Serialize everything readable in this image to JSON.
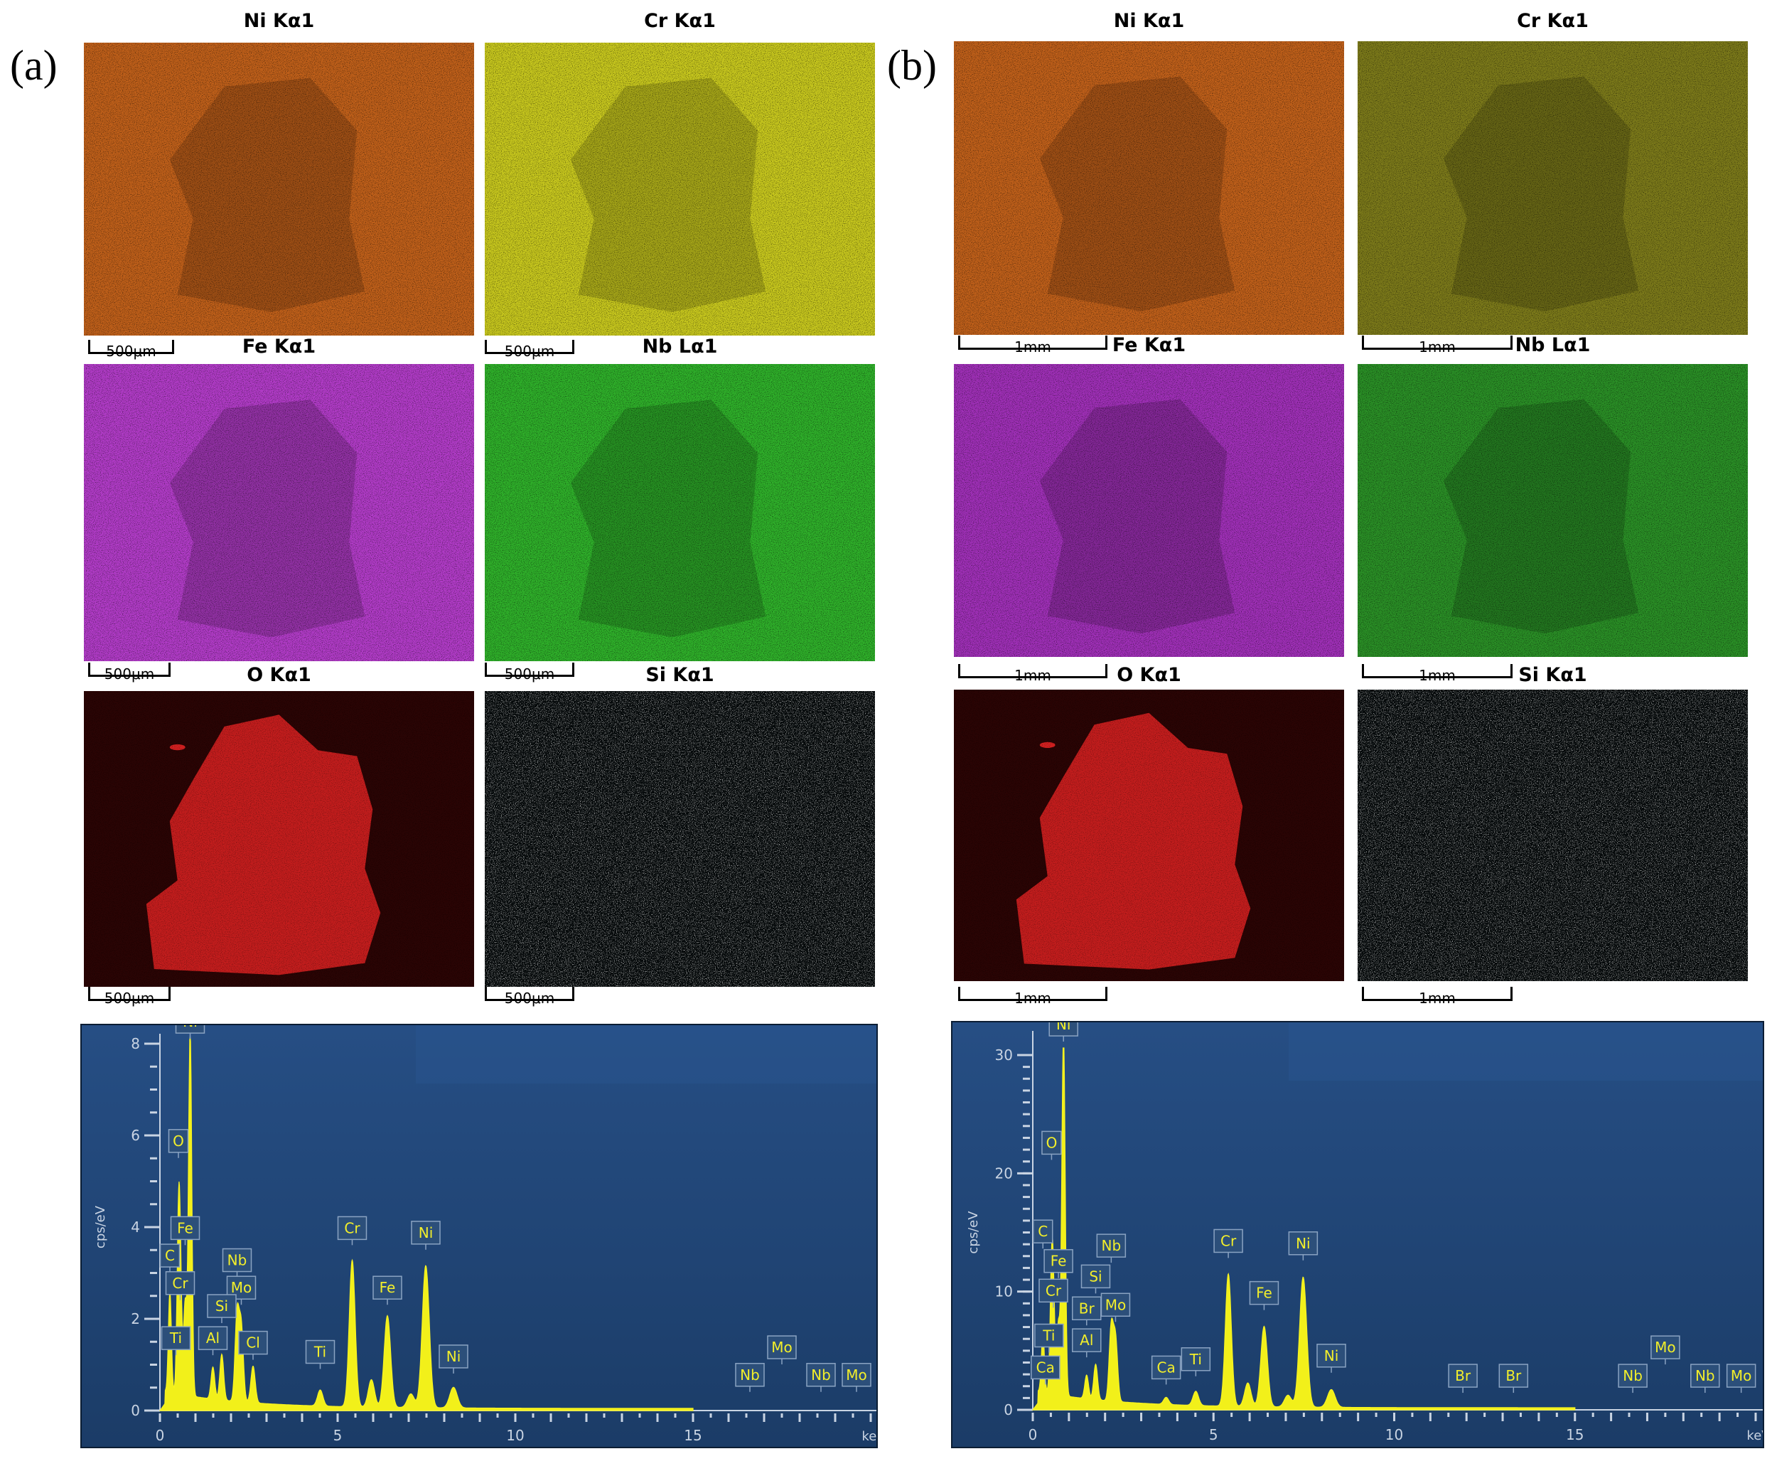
{
  "panel_a": {
    "label": "(a)",
    "maps": [
      {
        "title": "Ni Kα1",
        "scale": "500μm",
        "color": "#c0601a"
      },
      {
        "title": "Cr Kα1",
        "scale": "500μm",
        "color": "#c8c81e"
      },
      {
        "title": "Fe Kα1",
        "scale": "500μm",
        "color": "#b23cc8"
      },
      {
        "title": "Nb Lα1",
        "scale": "500μm",
        "color": "#2fb02a"
      },
      {
        "title": "O Kα1",
        "scale": "500μm",
        "color": "#d42020"
      },
      {
        "title": "Si Kα1",
        "scale": "500μm",
        "color": "#2ec8d0"
      }
    ]
  },
  "panel_b": {
    "label": "(b)",
    "maps": [
      {
        "title": "Ni Kα1",
        "scale": "1mm",
        "color": "#c0601a"
      },
      {
        "title": "Cr Kα1",
        "scale": "1mm",
        "color": "#7c7a1a"
      },
      {
        "title": "Fe Kα1",
        "scale": "1mm",
        "color": "#a030b8"
      },
      {
        "title": "Nb Lα1",
        "scale": "1mm",
        "color": "#2a8f26"
      },
      {
        "title": "O Kα1",
        "scale": "1mm",
        "color": "#d42020"
      },
      {
        "title": "Si Kα1",
        "scale": "1mm",
        "color": "#2ec8d0"
      }
    ]
  },
  "chart_data": [
    {
      "type": "line",
      "panel": "(a)",
      "ylabel": "cps/eV",
      "xlabel": "keV",
      "xlim": [
        0,
        20
      ],
      "ylim": [
        0,
        8
      ],
      "xticks": [
        0,
        5,
        10,
        15
      ],
      "yticks": [
        0,
        2,
        4,
        6,
        8
      ],
      "peaks": [
        {
          "x": 0.28,
          "y": 2.2
        },
        {
          "x": 0.52,
          "y": 3.1
        },
        {
          "x": 0.57,
          "y": 2.3
        },
        {
          "x": 0.71,
          "y": 2.0
        },
        {
          "x": 0.85,
          "y": 8.0
        },
        {
          "x": 1.49,
          "y": 0.7
        },
        {
          "x": 1.74,
          "y": 1.0
        },
        {
          "x": 2.17,
          "y": 1.9
        },
        {
          "x": 2.29,
          "y": 1.6
        },
        {
          "x": 2.62,
          "y": 0.8
        },
        {
          "x": 4.51,
          "y": 0.35
        },
        {
          "x": 5.41,
          "y": 3.2
        },
        {
          "x": 5.95,
          "y": 0.6
        },
        {
          "x": 6.4,
          "y": 2.0
        },
        {
          "x": 7.06,
          "y": 0.3
        },
        {
          "x": 7.48,
          "y": 3.1
        },
        {
          "x": 8.26,
          "y": 0.45
        }
      ],
      "annotations": [
        {
          "label": "Ni",
          "x": 0.85,
          "y": 8.2
        },
        {
          "label": "O",
          "x": 0.52,
          "y": 5.6
        },
        {
          "label": "Fe",
          "x": 0.71,
          "y": 3.7
        },
        {
          "label": "C",
          "x": 0.28,
          "y": 3.1
        },
        {
          "label": "Cr",
          "x": 0.57,
          "y": 2.5
        },
        {
          "label": "Ti",
          "x": 0.45,
          "y": 1.3
        },
        {
          "label": "Nb",
          "x": 2.17,
          "y": 3.0
        },
        {
          "label": "Mo",
          "x": 2.29,
          "y": 2.4
        },
        {
          "label": "Si",
          "x": 1.74,
          "y": 2.0
        },
        {
          "label": "Al",
          "x": 1.49,
          "y": 1.3
        },
        {
          "label": "Cl",
          "x": 2.62,
          "y": 1.2
        },
        {
          "label": "Ti",
          "x": 4.51,
          "y": 1.0
        },
        {
          "label": "Cr",
          "x": 5.41,
          "y": 3.7
        },
        {
          "label": "Fe",
          "x": 6.4,
          "y": 2.4
        },
        {
          "label": "Ni",
          "x": 7.48,
          "y": 3.6
        },
        {
          "label": "Ni",
          "x": 8.26,
          "y": 0.9
        },
        {
          "label": "Nb",
          "x": 16.6,
          "y": 0.5
        },
        {
          "label": "Mo",
          "x": 17.5,
          "y": 1.1
        },
        {
          "label": "Nb",
          "x": 18.6,
          "y": 0.5
        },
        {
          "label": "Mo",
          "x": 19.6,
          "y": 0.5
        }
      ]
    },
    {
      "type": "line",
      "panel": "(b)",
      "ylabel": "cps/eV",
      "xlabel": "keV",
      "xlim": [
        0,
        20
      ],
      "ylim": [
        0,
        30
      ],
      "xticks": [
        0,
        5,
        10,
        15
      ],
      "yticks": [
        0,
        10,
        20,
        30
      ],
      "peaks": [
        {
          "x": 0.28,
          "y": 5.0
        },
        {
          "x": 0.52,
          "y": 9.0
        },
        {
          "x": 0.57,
          "y": 6.5
        },
        {
          "x": 0.71,
          "y": 6.0
        },
        {
          "x": 0.85,
          "y": 31.0
        },
        {
          "x": 1.49,
          "y": 2.0
        },
        {
          "x": 1.74,
          "y": 3.0
        },
        {
          "x": 2.17,
          "y": 6.2
        },
        {
          "x": 2.29,
          "y": 5.2
        },
        {
          "x": 3.69,
          "y": 0.6
        },
        {
          "x": 4.51,
          "y": 1.2
        },
        {
          "x": 5.41,
          "y": 11.2
        },
        {
          "x": 5.95,
          "y": 2.0
        },
        {
          "x": 6.4,
          "y": 6.8
        },
        {
          "x": 7.06,
          "y": 1.0
        },
        {
          "x": 7.48,
          "y": 11.0
        },
        {
          "x": 8.26,
          "y": 1.5
        }
      ],
      "annotations": [
        {
          "label": "Ni",
          "x": 0.85,
          "y": 31.5
        },
        {
          "label": "O",
          "x": 0.52,
          "y": 21.5
        },
        {
          "label": "C",
          "x": 0.28,
          "y": 14.0
        },
        {
          "label": "Fe",
          "x": 0.71,
          "y": 11.5
        },
        {
          "label": "Cr",
          "x": 0.57,
          "y": 9.0
        },
        {
          "label": "Ti",
          "x": 0.45,
          "y": 5.2
        },
        {
          "label": "Ca",
          "x": 0.35,
          "y": 2.5
        },
        {
          "label": "Nb",
          "x": 2.17,
          "y": 12.8
        },
        {
          "label": "Si",
          "x": 1.74,
          "y": 10.2
        },
        {
          "label": "Br",
          "x": 1.49,
          "y": 7.5
        },
        {
          "label": "Mo",
          "x": 2.29,
          "y": 7.8
        },
        {
          "label": "Al",
          "x": 1.49,
          "y": 4.8
        },
        {
          "label": "Ca",
          "x": 3.69,
          "y": 2.5
        },
        {
          "label": "Ti",
          "x": 4.51,
          "y": 3.2
        },
        {
          "label": "Cr",
          "x": 5.41,
          "y": 13.2
        },
        {
          "label": "Fe",
          "x": 6.4,
          "y": 8.8
        },
        {
          "label": "Ni",
          "x": 7.48,
          "y": 13.0
        },
        {
          "label": "Ni",
          "x": 8.26,
          "y": 3.5
        },
        {
          "label": "Br",
          "x": 11.9,
          "y": 1.8
        },
        {
          "label": "Br",
          "x": 13.3,
          "y": 1.8
        },
        {
          "label": "Nb",
          "x": 16.6,
          "y": 1.8
        },
        {
          "label": "Mo",
          "x": 17.5,
          "y": 4.2
        },
        {
          "label": "Nb",
          "x": 18.6,
          "y": 1.8
        },
        {
          "label": "Mo",
          "x": 19.6,
          "y": 1.8
        }
      ]
    }
  ]
}
